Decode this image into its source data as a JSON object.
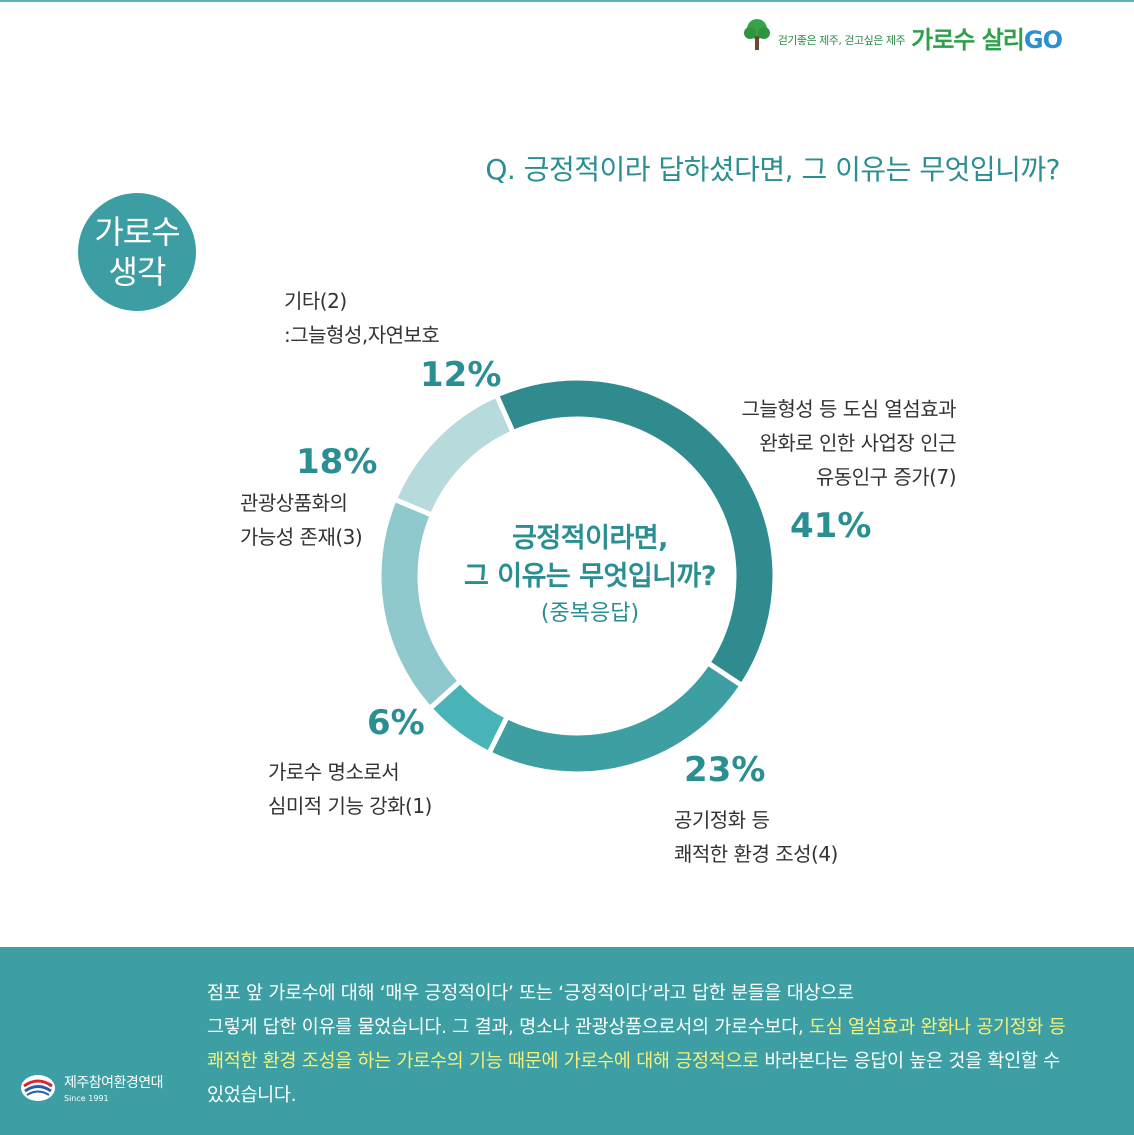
{
  "brand": {
    "slogan": "걷기좋은 제주, 걷고싶은 제주",
    "name_main": "가로수 살리",
    "name_go": "GO"
  },
  "question": "Q. 긍정적이라 답하셨다면, 그 이유는 무엇입니까?",
  "badge": {
    "line1": "가로수",
    "line2": "생각"
  },
  "center": {
    "line1": "긍정적이라면,",
    "line2": "그 이유는 무엇입니까?",
    "line3": "(중복응답)"
  },
  "labels": {
    "urban": [
      "그늘형성 등 도심 열섬효과",
      "완화로 인한 사업장 인근",
      "유동인구 증가(7)"
    ],
    "air": [
      "공기정화 등",
      "쾌적한 환경 조성(4)"
    ],
    "landmark": [
      "가로수 명소로서",
      "심미적 기능 강화(1)"
    ],
    "tourism": [
      "관광상품화의",
      "가능성 존재(3)"
    ],
    "other": [
      "기타(2)",
      ":그늘형성,자연보호"
    ]
  },
  "chart_data": {
    "type": "pie",
    "donut": true,
    "categories": [
      "그늘형성 등 도심 열섬효과 완화로 인한 사업장 인근 유동인구 증가(7)",
      "공기정화 등 쾌적한 환경 조성(4)",
      "가로수 명소로서 심미적 기능 강화(1)",
      "관광상품화의 가능성 존재(3)",
      "기타(2) :그늘형성,자연보호"
    ],
    "values": [
      41,
      23,
      6,
      18,
      12
    ],
    "value_labels": [
      "41%",
      "23%",
      "6%",
      "18%",
      "12%"
    ],
    "counts": [
      7,
      4,
      1,
      3,
      2
    ],
    "colors": [
      "#2f8b8d",
      "#3e9fa2",
      "#48b4b8",
      "#8fc8cd",
      "#b7dadd"
    ]
  },
  "footer": {
    "p1": "점포 앞 가로수에 대해 ‘매우 긍정적이다’ 또는 ‘긍정적이다’라고 답한 분들을 대상으로",
    "p2": "그렇게 답한 이유를 물었습니다. 그 결과, 명소나 관광상품으로서의 가로수보다, ",
    "p_highlight": "도심 열섬효과 완화나 공기정화 등 쾌적한 환경 조성을 하는 가로수의 기능 때문에 가로수에 대해 긍정적으로",
    "p3": " 바라본다는 응답이 높은 것을 확인할 수 있었습니다."
  },
  "org": {
    "name": "제주참여환경연대",
    "since": "Since 1991"
  }
}
